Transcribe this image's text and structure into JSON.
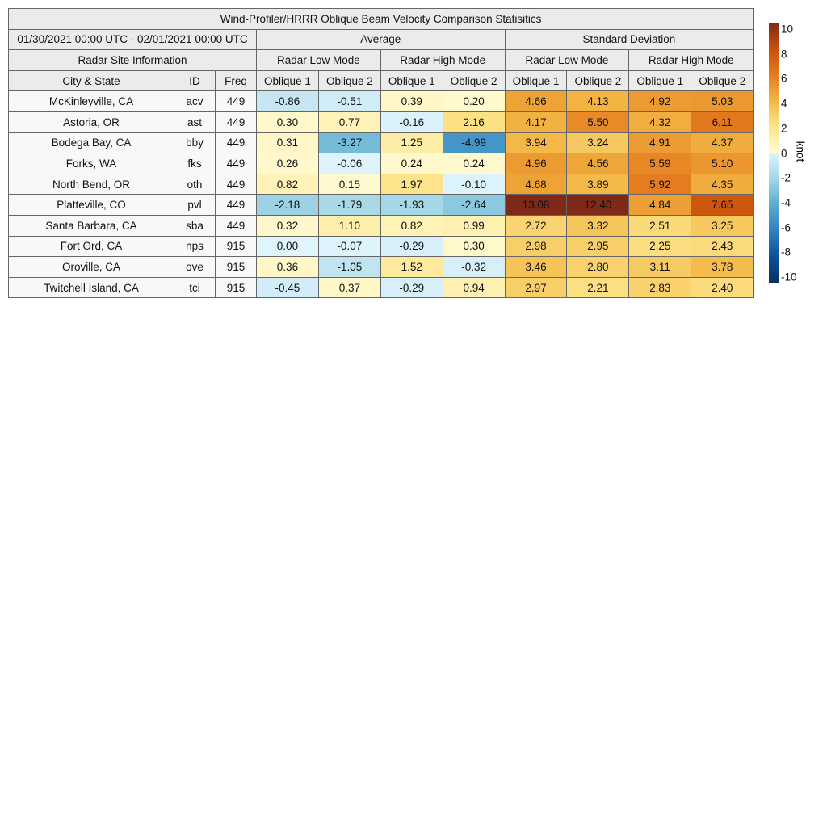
{
  "chart_data": {
    "type": "table",
    "title": "Wind-Profiler/HRRR Oblique Beam Velocity Comparison Statisitics",
    "period": "01/30/2021 00:00 UTC - 02/01/2021 00:00 UTC",
    "groups": [
      "Average",
      "Standard Deviation"
    ],
    "site_group": "Radar Site Information",
    "modes": [
      "Radar Low Mode",
      "Radar High Mode",
      "Radar Low Mode",
      "Radar High Mode"
    ],
    "columns": [
      "City & State",
      "ID",
      "Freq",
      "Oblique 1",
      "Oblique 2",
      "Oblique 1",
      "Oblique 2",
      "Oblique 1",
      "Oblique 2",
      "Oblique 1",
      "Oblique 2"
    ],
    "rows": [
      {
        "city": "McKinleyville, CA",
        "id": "acv",
        "freq": "449",
        "values": [
          "-0.86",
          "-0.51",
          "0.39",
          "0.20",
          "4.66",
          "4.13",
          "4.92",
          "5.03"
        ]
      },
      {
        "city": "Astoria, OR",
        "id": "ast",
        "freq": "449",
        "values": [
          "0.30",
          "0.77",
          "-0.16",
          "2.16",
          "4.17",
          "5.50",
          "4.32",
          "6.11"
        ]
      },
      {
        "city": "Bodega Bay, CA",
        "id": "bby",
        "freq": "449",
        "values": [
          "0.31",
          "-3.27",
          "1.25",
          "-4.99",
          "3.94",
          "3.24",
          "4.91",
          "4.37"
        ]
      },
      {
        "city": "Forks, WA",
        "id": "fks",
        "freq": "449",
        "values": [
          "0.26",
          "-0.06",
          "0.24",
          "0.24",
          "4.96",
          "4.56",
          "5.59",
          "5.10"
        ]
      },
      {
        "city": "North Bend, OR",
        "id": "oth",
        "freq": "449",
        "values": [
          "0.82",
          "0.15",
          "1.97",
          "-0.10",
          "4.68",
          "3.89",
          "5.92",
          "4.35"
        ]
      },
      {
        "city": "Platteville, CO",
        "id": "pvl",
        "freq": "449",
        "values": [
          "-2.18",
          "-1.79",
          "-1.93",
          "-2.64",
          "13.08",
          "12.40",
          "4.84",
          "7.65"
        ]
      },
      {
        "city": "Santa Barbara, CA",
        "id": "sba",
        "freq": "449",
        "values": [
          "0.32",
          "1.10",
          "0.82",
          "0.99",
          "2.72",
          "3.32",
          "2.51",
          "3.25"
        ]
      },
      {
        "city": "Fort Ord, CA",
        "id": "nps",
        "freq": "915",
        "values": [
          "0.00",
          "-0.07",
          "-0.29",
          "0.30",
          "2.98",
          "2.95",
          "2.25",
          "2.43"
        ]
      },
      {
        "city": "Oroville, CA",
        "id": "ove",
        "freq": "915",
        "values": [
          "0.36",
          "-1.05",
          "1.52",
          "-0.32",
          "3.46",
          "2.80",
          "3.11",
          "3.78"
        ]
      },
      {
        "city": "Twitchell Island, CA",
        "id": "tci",
        "freq": "915",
        "values": [
          "-0.45",
          "0.37",
          "-0.29",
          "0.94",
          "2.97",
          "2.21",
          "2.83",
          "2.40"
        ]
      }
    ],
    "colorbar": {
      "label": "knot",
      "range": [
        -10,
        10
      ],
      "ticks": [
        "10",
        "8",
        "6",
        "4",
        "2",
        "0",
        "-2",
        "-4",
        "-6",
        "-8",
        "-10"
      ],
      "stops": [
        [
          -10,
          "#08305e"
        ],
        [
          -8,
          "#0b4f9a"
        ],
        [
          -6,
          "#2f7fbf"
        ],
        [
          -4,
          "#5aabd1"
        ],
        [
          -2,
          "#a3d6e5"
        ],
        [
          0,
          "#e0f4fc"
        ],
        [
          0.001,
          "#fffbd6"
        ],
        [
          2,
          "#fde48a"
        ],
        [
          4,
          "#f3b744"
        ],
        [
          6,
          "#e47b1e"
        ],
        [
          8,
          "#c94f0c"
        ],
        [
          10,
          "#7f2a18"
        ]
      ]
    }
  }
}
